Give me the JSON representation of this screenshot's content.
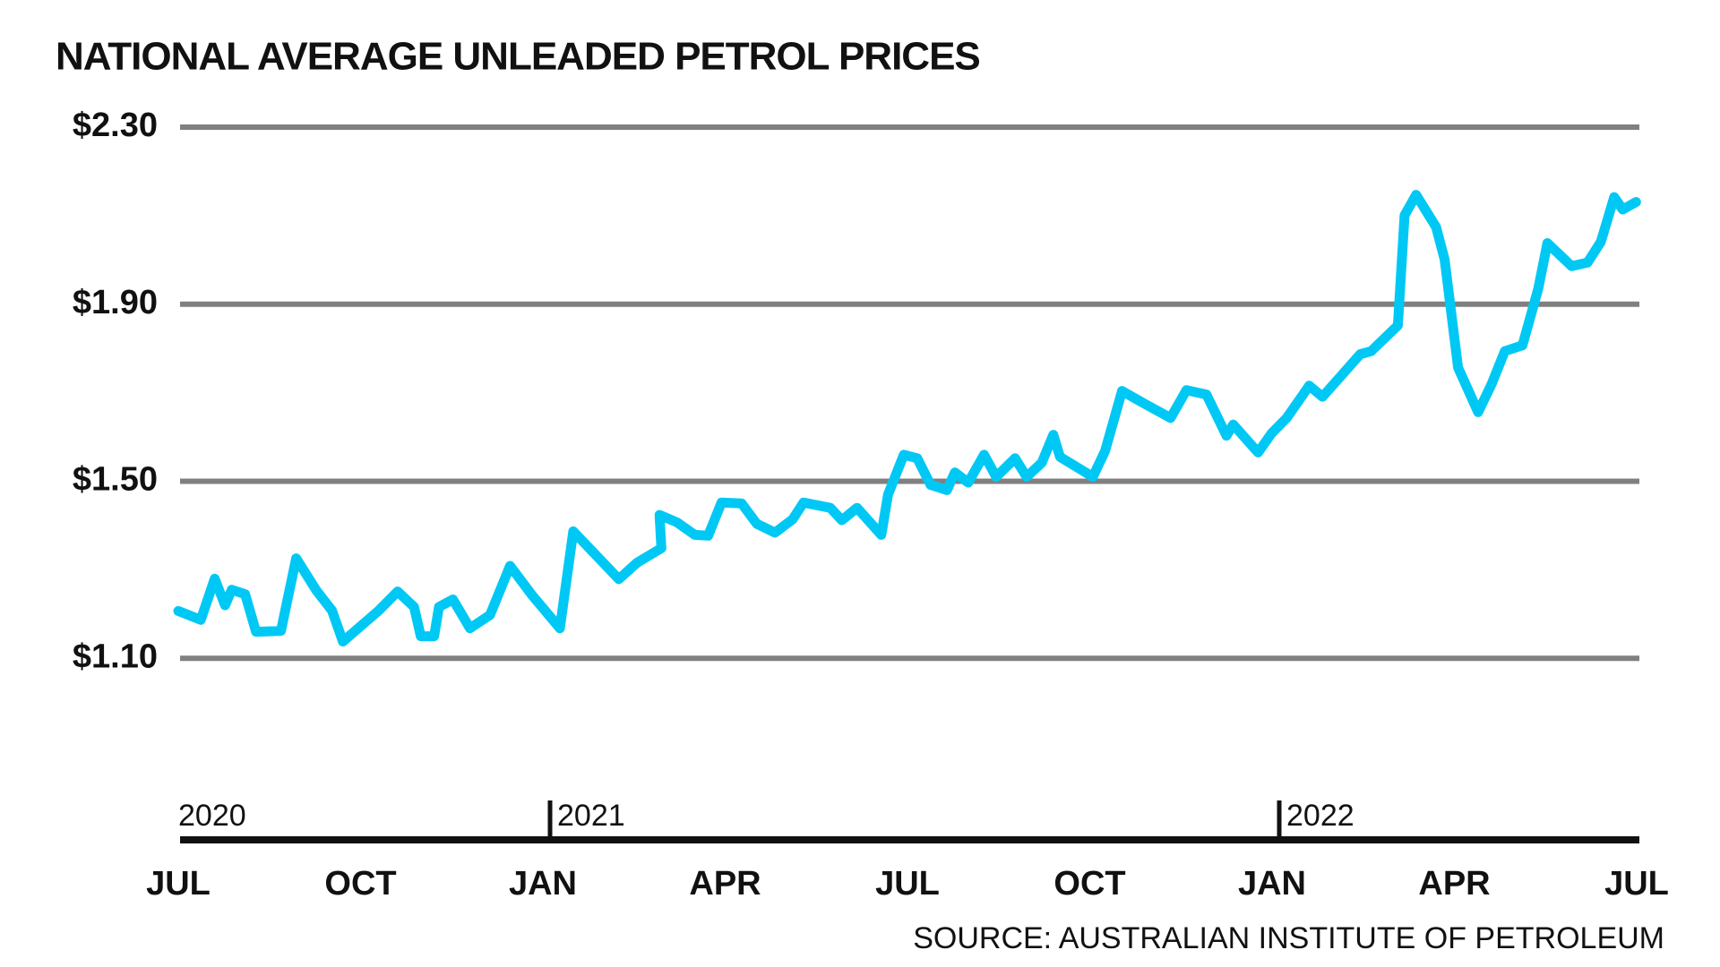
{
  "chart_data": {
    "type": "line",
    "title": "NATIONAL AVERAGE UNLEADED PETROL PRICES",
    "source": "SOURCE: AUSTRALIAN INSTITUTE OF PETROLEUM",
    "color": "#00c8f5",
    "grid": true,
    "x": [
      0,
      0.37,
      0.6,
      0.77,
      0.88,
      1.1,
      1.28,
      1.69,
      1.94,
      2.27,
      2.53,
      2.71,
      3.3,
      3.61,
      3.88,
      3.99,
      4.21,
      4.29,
      4.52,
      4.8,
      5.13,
      5.46,
      5.82,
      6.28,
      6.5,
      7.25,
      7.55,
      7.95,
      7.92,
      8.21,
      8.5,
      8.72,
      8.94,
      9.27,
      9.52,
      9.82,
      10.11,
      10.29,
      10.73,
      10.92,
      11.17,
      11.57,
      11.68,
      11.94,
      12.16,
      12.38,
      12.65,
      12.78,
      13.0,
      13.26,
      13.46,
      13.77,
      13.96,
      14.21,
      14.4,
      14.51,
      15.05,
      15.25,
      15.53,
      15.93,
      16.33,
      16.59,
      16.92,
      17.25,
      17.36,
      17.77,
      17.99,
      18.24,
      18.5,
      18.61,
      18.83,
      19.45,
      19.63,
      20.07,
      20.18,
      20.37,
      20.7,
      20.84,
      21.06,
      21.39,
      21.61,
      21.83,
      22.12,
      22.38,
      22.53,
      22.93,
      23.19,
      23.41,
      23.63,
      23.77,
      23.99
    ],
    "values": [
      1.207,
      1.187,
      1.28,
      1.22,
      1.255,
      1.245,
      1.16,
      1.162,
      1.326,
      1.254,
      1.208,
      1.138,
      1.208,
      1.251,
      1.216,
      1.15,
      1.15,
      1.216,
      1.233,
      1.168,
      1.198,
      1.309,
      1.243,
      1.168,
      1.387,
      1.279,
      1.316,
      1.349,
      1.424,
      1.407,
      1.379,
      1.377,
      1.452,
      1.45,
      1.404,
      1.384,
      1.414,
      1.452,
      1.44,
      1.412,
      1.44,
      1.379,
      1.47,
      1.56,
      1.552,
      1.492,
      1.48,
      1.52,
      1.497,
      1.56,
      1.51,
      1.552,
      1.51,
      1.542,
      1.605,
      1.555,
      1.51,
      1.568,
      1.704,
      1.673,
      1.643,
      1.706,
      1.696,
      1.603,
      1.628,
      1.565,
      1.608,
      1.643,
      1.694,
      1.716,
      1.691,
      1.787,
      1.794,
      1.852,
      2.101,
      2.147,
      2.074,
      2.001,
      1.757,
      1.656,
      1.719,
      1.794,
      1.807,
      1.935,
      2.038,
      1.986,
      1.994,
      2.041,
      2.142,
      2.114,
      2.131
    ],
    "xlim": [
      0,
      24
    ],
    "xticks": [
      {
        "value": 0,
        "label": "JUL"
      },
      {
        "value": 3,
        "label": "OCT"
      },
      {
        "value": 6,
        "label": "JAN"
      },
      {
        "value": 9,
        "label": "APR"
      },
      {
        "value": 12,
        "label": "JUL"
      },
      {
        "value": 15,
        "label": "OCT"
      },
      {
        "value": 18,
        "label": "JAN"
      },
      {
        "value": 21,
        "label": "APR"
      },
      {
        "value": 24,
        "label": "JUL"
      }
    ],
    "year_labels": [
      {
        "value": 0,
        "label": "2020"
      },
      {
        "value": 6,
        "label": "2021"
      },
      {
        "value": 18,
        "label": "2022"
      }
    ],
    "ylim": [
      0.69,
      2.3
    ],
    "yticks": [
      {
        "value": 1.1,
        "label": "$1.10"
      },
      {
        "value": 1.5,
        "label": "$1.50"
      },
      {
        "value": 1.9,
        "label": "$1.90"
      },
      {
        "value": 2.3,
        "label": "$2.30"
      }
    ]
  }
}
